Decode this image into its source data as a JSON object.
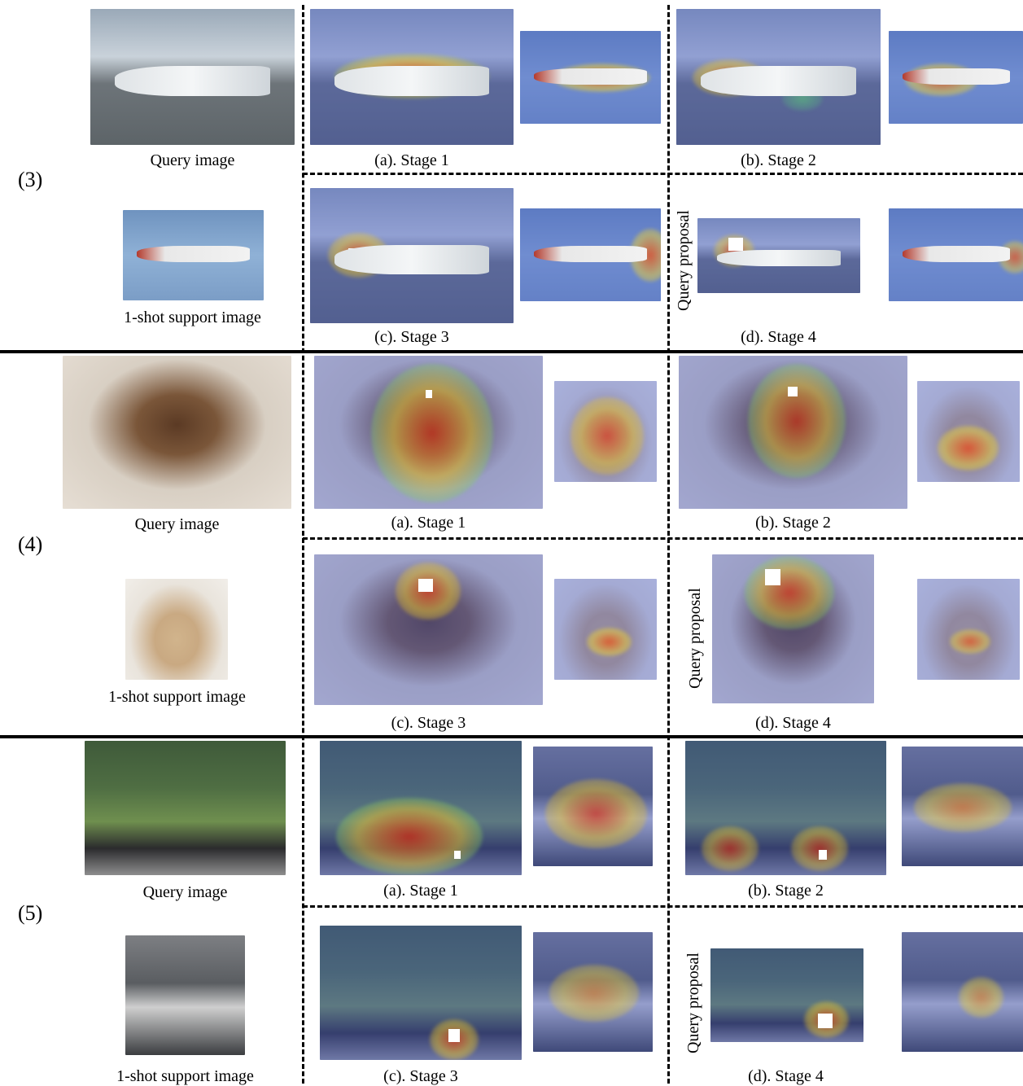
{
  "groups": [
    {
      "label": "(3)",
      "query_caption": "Query image",
      "support_caption": "1-shot support image",
      "stage_captions": [
        "(a). Stage 1",
        "(b). Stage 2",
        "(c). Stage 3",
        "(d). Stage 4"
      ],
      "proposal_label": "Query proposal"
    },
    {
      "label": "(4)",
      "query_caption": "Query image",
      "support_caption": "1-shot support image",
      "stage_captions": [
        "(a). Stage 1",
        "(b). Stage 2",
        "(c). Stage 3",
        "(d). Stage 4"
      ],
      "proposal_label": "Query proposal"
    },
    {
      "label": "(5)",
      "query_caption": "Query image",
      "support_caption": "1-shot support image",
      "stage_captions": [
        "(a). Stage 1",
        "(b). Stage 2",
        "(c). Stage 3",
        "(d). Stage 4"
      ],
      "proposal_label": "Query proposal"
    }
  ]
}
